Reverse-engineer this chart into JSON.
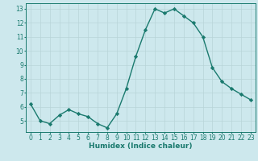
{
  "x": [
    0,
    1,
    2,
    3,
    4,
    5,
    6,
    7,
    8,
    9,
    10,
    11,
    12,
    13,
    14,
    15,
    16,
    17,
    18,
    19,
    20,
    21,
    22,
    23
  ],
  "y": [
    6.2,
    5.0,
    4.8,
    5.4,
    5.8,
    5.5,
    5.3,
    4.8,
    4.5,
    5.5,
    7.3,
    9.6,
    11.5,
    13.0,
    12.7,
    13.0,
    12.5,
    12.0,
    11.0,
    8.8,
    7.8,
    7.3,
    6.9,
    6.5
  ],
  "xlabel": "Humidex (Indice chaleur)",
  "bg_color": "#cde8ed",
  "line_color": "#1a7a6e",
  "marker_color": "#1a7a6e",
  "grid_color": "#b8d4d8",
  "tick_color": "#1a7a6e",
  "spine_color": "#1a7a6e",
  "ylim": [
    4.2,
    13.4
  ],
  "xlim": [
    -0.5,
    23.5
  ],
  "yticks": [
    5,
    6,
    7,
    8,
    9,
    10,
    11,
    12,
    13
  ],
  "xticks": [
    0,
    1,
    2,
    3,
    4,
    5,
    6,
    7,
    8,
    9,
    10,
    11,
    12,
    13,
    14,
    15,
    16,
    17,
    18,
    19,
    20,
    21,
    22,
    23
  ],
  "xlabel_fontsize": 6.5,
  "tick_fontsize": 5.5,
  "linewidth": 1.0,
  "markersize": 2.2
}
